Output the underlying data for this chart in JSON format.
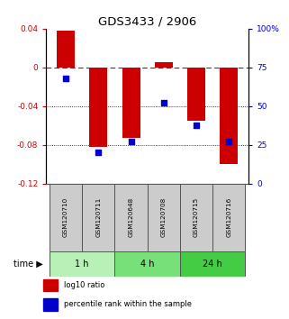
{
  "title": "GDS3433 / 2906",
  "samples": [
    "GSM120710",
    "GSM120711",
    "GSM120648",
    "GSM120708",
    "GSM120715",
    "GSM120716"
  ],
  "log10_ratio": [
    0.038,
    -0.082,
    -0.073,
    0.005,
    -0.055,
    -0.1
  ],
  "percentile_rank": [
    68,
    20,
    27,
    52,
    38,
    27
  ],
  "groups": [
    {
      "label": "1 h",
      "indices": [
        0,
        1
      ],
      "color": "#b8f0b8"
    },
    {
      "label": "4 h",
      "indices": [
        2,
        3
      ],
      "color": "#78e078"
    },
    {
      "label": "24 h",
      "indices": [
        4,
        5
      ],
      "color": "#44cc44"
    }
  ],
  "bar_color": "#cc0000",
  "dot_color": "#0000cc",
  "ylim_left": [
    -0.12,
    0.04
  ],
  "ylim_right": [
    0,
    100
  ],
  "yticks_left": [
    0.04,
    0.0,
    -0.04,
    -0.08,
    -0.12
  ],
  "yticks_right": [
    100,
    75,
    50,
    25,
    0
  ],
  "hline_y": 0,
  "dotted_lines": [
    -0.04,
    -0.08
  ],
  "bar_width": 0.55,
  "legend_items": [
    {
      "color": "#cc0000",
      "label": "log10 ratio"
    },
    {
      "color": "#0000cc",
      "label": "percentile rank within the sample"
    }
  ],
  "background_color": "#ffffff",
  "plot_bg": "#ffffff",
  "sample_box_color": "#cccccc",
  "time_label": "time"
}
